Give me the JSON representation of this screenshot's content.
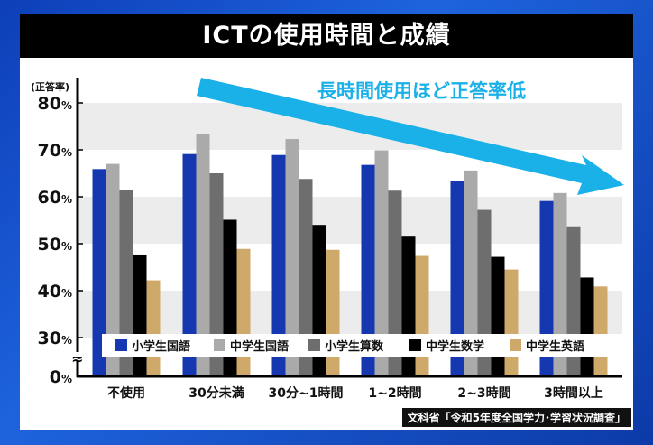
{
  "title": "ICTの使用時間と成績",
  "source": "文科省「令和5年度全国学力･学習状況調査」",
  "chart_data": {
    "type": "bar",
    "title": "ICTの使用時間と成績",
    "ylabel": "(正答率)",
    "annotation": "長時間使用ほど正答率低",
    "annotation_color": "#1ab0e8",
    "categories": [
      "不使用",
      "30分未満",
      "30分~1時間",
      "1~2時間",
      "2~3時間",
      "3時間以上"
    ],
    "yticks": [
      "0%",
      "30%",
      "40%",
      "50%",
      "60%",
      "70%",
      "80%"
    ],
    "ylim": [
      0,
      80
    ],
    "axis_break": [
      0,
      30
    ],
    "grid": "alternating bands",
    "legend_position": "bottom",
    "series": [
      {
        "name": "小学生国語",
        "color": "#1538b0",
        "values": [
          65.9,
          69.1,
          68.9,
          66.8,
          63.3,
          59.1
        ]
      },
      {
        "name": "中学生国語",
        "color": "#aaaaaa",
        "values": [
          67.0,
          73.3,
          72.3,
          69.9,
          65.6,
          60.8
        ]
      },
      {
        "name": "小学生算数",
        "color": "#6e6e6e",
        "values": [
          61.5,
          65.0,
          63.8,
          61.3,
          57.2,
          53.7
        ]
      },
      {
        "name": "中学生数学",
        "color": "#000000",
        "values": [
          47.7,
          55.1,
          54.0,
          51.5,
          47.2,
          42.8
        ]
      },
      {
        "name": "中学生英語",
        "color": "#cfa96a",
        "values": [
          42.2,
          48.9,
          48.7,
          47.4,
          44.5,
          40.9
        ]
      }
    ]
  }
}
